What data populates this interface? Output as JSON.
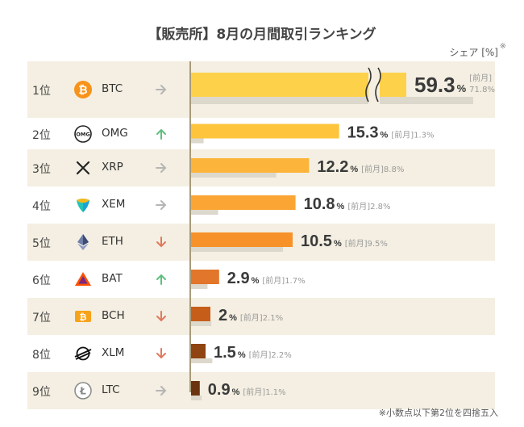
{
  "header": {
    "title": "【販売所】8月の月間取引ランキング",
    "unit_label": "シェア [%]",
    "unit_mark": "※"
  },
  "footnote": "※小数点以下第2位を四捨五入",
  "colors": {
    "row_alt": "#f4efe2",
    "prev_bar": "#ddd8cc",
    "up": "#5fbf7f",
    "down": "#e0795c",
    "flat": "#b5b5b5"
  },
  "chart_data": {
    "type": "bar",
    "orientation": "horizontal",
    "categories": [
      "BTC",
      "OMG",
      "XRP",
      "XEM",
      "ETH",
      "BAT",
      "BCH",
      "XLM",
      "LTC"
    ],
    "ranks": [
      "1位",
      "2位",
      "3位",
      "4位",
      "5位",
      "6位",
      "7位",
      "8位",
      "9位"
    ],
    "series": [
      {
        "name": "",
        "values": [
          59.3,
          15.3,
          12.2,
          10.8,
          10.5,
          2.9,
          2.0,
          1.5,
          0.9
        ]
      },
      {
        "name": "前月",
        "values": [
          71.8,
          1.3,
          8.8,
          2.8,
          9.5,
          1.7,
          2.1,
          2.2,
          1.1
        ]
      }
    ],
    "trend": [
      "flat",
      "up",
      "flat",
      "flat",
      "down",
      "up",
      "down",
      "down",
      "flat"
    ],
    "bar_colors": [
      "#fdd24a",
      "#fdc43c",
      "#fcb53a",
      "#fba634",
      "#f7922a",
      "#e2762a",
      "#c65e1a",
      "#8f4412",
      "#6b3410"
    ],
    "value_suffix": "%",
    "prev_label": "[前月]",
    "axis_break": true
  }
}
